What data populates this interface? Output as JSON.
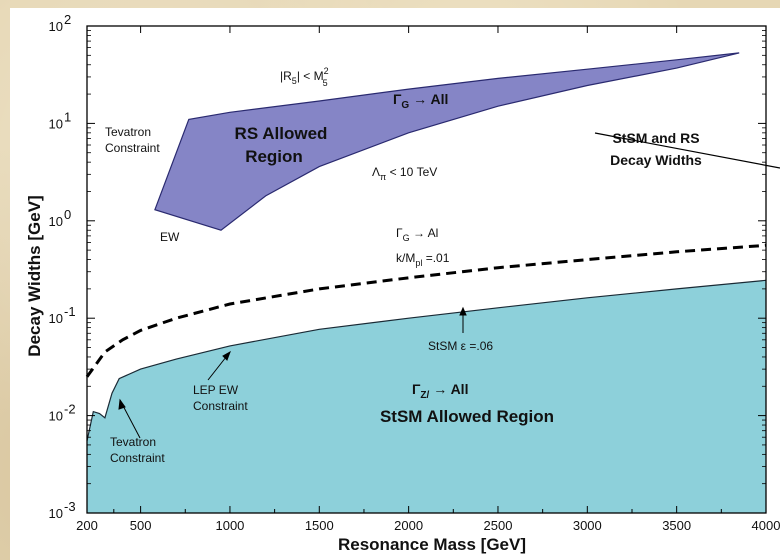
{
  "chart_data": {
    "type": "area",
    "xlabel": "Resonance Mass  [GeV]",
    "ylabel": "Decay Widths  [GeV]",
    "xlim": [
      200,
      4000
    ],
    "ylim": [
      0.001,
      100
    ],
    "yscale": "log",
    "x_ticks": [
      200,
      500,
      1000,
      1500,
      2000,
      2500,
      3000,
      3500,
      4000
    ],
    "x_tick_labels": [
      "200",
      "500",
      "1000",
      "1500",
      "2000",
      "2500",
      "3000",
      "3500",
      "4000"
    ],
    "y_ticks": [
      0.001,
      0.01,
      0.1,
      1,
      10,
      100
    ],
    "y_tick_labels": [
      {
        "base": "10",
        "exp": "-3"
      },
      {
        "base": "10",
        "exp": "-2"
      },
      {
        "base": "10",
        "exp": "-1"
      },
      {
        "base": "10",
        "exp": "0"
      },
      {
        "base": "10",
        "exp": "1"
      },
      {
        "base": "10",
        "exp": "2"
      }
    ],
    "grid": false,
    "series": [
      {
        "name": "RS Allowed Region",
        "kind": "filled-region",
        "color": "#8585c6",
        "edge_color": "#2a2a70",
        "boundary": [
          [
            580,
            1.3
          ],
          [
            770,
            11
          ],
          [
            1000,
            13
          ],
          [
            1500,
            17
          ],
          [
            2000,
            22.5
          ],
          [
            2500,
            29
          ],
          [
            3000,
            36
          ],
          [
            3500,
            45
          ],
          [
            3850,
            53
          ],
          [
            3500,
            37
          ],
          [
            3000,
            24.5
          ],
          [
            2500,
            15
          ],
          [
            2000,
            8
          ],
          [
            1500,
            3.6
          ],
          [
            1200,
            1.8
          ],
          [
            950,
            0.8
          ],
          [
            580,
            1.3
          ]
        ]
      },
      {
        "name": "StSM Allowed Region",
        "kind": "filled-region",
        "color": "#8dd0da",
        "edge_color": "#1a2a35",
        "upper_boundary": [
          [
            200,
            0.0055
          ],
          [
            235,
            0.011
          ],
          [
            270,
            0.0105
          ],
          [
            300,
            0.0095
          ],
          [
            340,
            0.017
          ],
          [
            380,
            0.024
          ],
          [
            500,
            0.03
          ],
          [
            700,
            0.038
          ],
          [
            1000,
            0.052
          ],
          [
            1500,
            0.077
          ],
          [
            2000,
            0.1
          ],
          [
            2500,
            0.128
          ],
          [
            3000,
            0.162
          ],
          [
            3500,
            0.2
          ],
          [
            4000,
            0.245
          ]
        ],
        "lower_bound": 0.001
      },
      {
        "name": "Gamma_G -> All, k/M_pl = .01",
        "kind": "dashed-line",
        "color": "#000000",
        "points": [
          [
            200,
            0.025
          ],
          [
            300,
            0.045
          ],
          [
            400,
            0.06
          ],
          [
            500,
            0.075
          ],
          [
            700,
            0.1
          ],
          [
            1000,
            0.14
          ],
          [
            1500,
            0.2
          ],
          [
            2000,
            0.26
          ],
          [
            2500,
            0.33
          ],
          [
            3000,
            0.4
          ],
          [
            3500,
            0.48
          ],
          [
            4000,
            0.56
          ]
        ]
      }
    ],
    "annotations": {
      "rs_region": [
        "RS Allowed",
        "Region"
      ],
      "r5": {
        "base": "|R",
        "sub": "5",
        "mid": "| < M",
        "sup": "2",
        "sub2": "5"
      },
      "gamma_g_all": {
        "base": "Γ",
        "sub": "G",
        "rest": " → All"
      },
      "tevatron_top": [
        "Tevatron",
        "Constraint"
      ],
      "lambda": {
        "base": "Λ",
        "sub": "π",
        "rest": " < 10 TeV"
      },
      "ew": "EW",
      "gamma_g_al": {
        "base": "Γ",
        "sub": "G",
        "rest": " → Al"
      },
      "k_mpl": {
        "base": "k/M",
        "sub": "pl",
        "rest": " =.01"
      },
      "stsm_rs_title": [
        "StSM and RS",
        "Decay Widths"
      ],
      "stsm_eps": "StSM  ε =.06",
      "lep_ew": [
        "LEP EW",
        "Constraint"
      ],
      "gamma_z_all": {
        "base": "Γ",
        "sub": "Z/",
        "rest": " → All"
      },
      "stsm_region": "StSM Allowed Region",
      "tevatron_bottom": [
        "Tevatron",
        "Constraint"
      ]
    }
  }
}
